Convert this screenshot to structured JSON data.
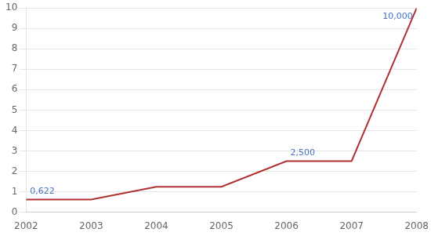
{
  "chart_data": {
    "type": "line",
    "x": [
      2002,
      2003,
      2004,
      2005,
      2006,
      2007,
      2008
    ],
    "values": [
      0.622,
      0.622,
      1.244,
      1.244,
      2.5,
      2.5,
      10.0
    ],
    "color": "#b03030",
    "annotations": [
      {
        "x": 2002,
        "y": 0.622,
        "label": "0,622",
        "color": "#4472c4"
      },
      {
        "x": 2006,
        "y": 2.5,
        "label": "2,500",
        "color": "#4472c4"
      },
      {
        "x": 2008,
        "y": 10.0,
        "label": "10,000",
        "color": "#4472c4"
      }
    ],
    "xlim": [
      2002,
      2008
    ],
    "ylim": [
      0,
      10
    ],
    "xticks": [
      2002,
      2003,
      2004,
      2005,
      2006,
      2007,
      2008
    ],
    "yticks": [
      0,
      1,
      2,
      3,
      4,
      5,
      6,
      7,
      8,
      9,
      10
    ],
    "grid": "y"
  }
}
